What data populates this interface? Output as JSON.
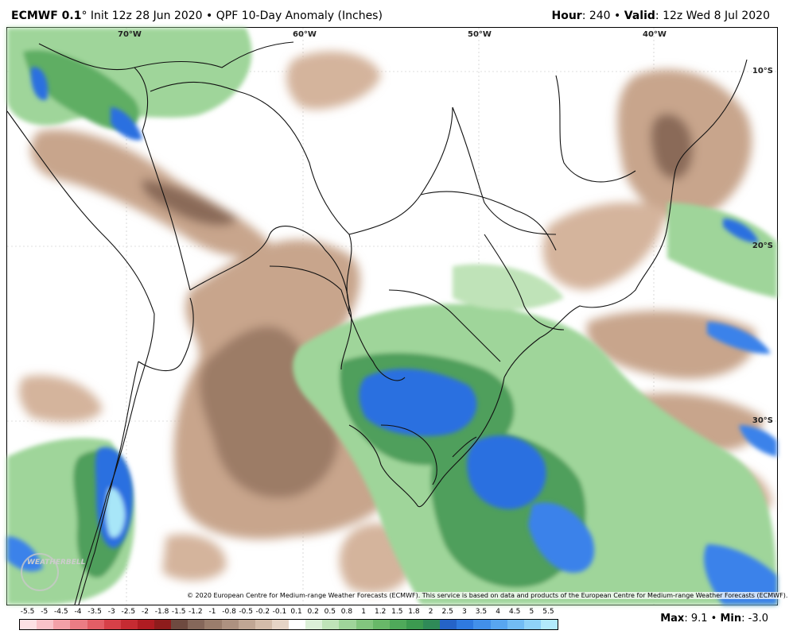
{
  "header": {
    "model": "ECMWF 0.1",
    "degree": "°",
    "init": "Init 12z 28 Jun 2020",
    "product": "QPF 10-Day Anomaly (Inches)",
    "hour_label": "Hour",
    "hour_value": ": 240",
    "valid_label": "Valid",
    "valid_value": ": 12z Wed 8 Jul 2020",
    "bullet": "•"
  },
  "map": {
    "lon_labels": [
      "70°W",
      "60°W",
      "50°W",
      "40°W"
    ],
    "lat_labels": [
      "10°S",
      "20°S",
      "30°S"
    ],
    "copyright": "© 2020 European Centre for Medium-range Weather Forecasts (ECMWF). This service is based on data and products of the European Centre for Medium-range Weather Forecasts (ECMWF).",
    "watermark": "WEATHERBELL",
    "colors": {
      "ocean_land_bg": "#ffffff",
      "dry_light": "#dcbfa6",
      "dry_mid": "#b8957a",
      "dry_dark": "#8a6a58",
      "wet_light": "#c6e6c0",
      "wet_mid": "#7cc27c",
      "wet_dark": "#3f9a52",
      "very_wet": "#2b6fe0",
      "extreme_wet": "#a8e6f8"
    }
  },
  "colorbar": {
    "labels": [
      "-5.5",
      "-5",
      "-4.5",
      "-4",
      "-3.5",
      "-3",
      "-2.5",
      "-2",
      "-1.8",
      "-1.5",
      "-1.2",
      "-1",
      "-0.8",
      "-0.5",
      "-0.2",
      "-0.1",
      "0.1",
      "0.2",
      "0.5",
      "0.8",
      "1",
      "1.2",
      "1.5",
      "1.8",
      "2",
      "2.5",
      "3",
      "3.5",
      "4",
      "4.5",
      "5",
      "5.5"
    ],
    "colors": [
      "#fde0e4",
      "#f9c2c9",
      "#f3a0a8",
      "#ec7c84",
      "#e35e66",
      "#d64048",
      "#c62b32",
      "#b01c22",
      "#8e1c1c",
      "#6e4a40",
      "#85675a",
      "#9a7d6c",
      "#ad9180",
      "#c0a694",
      "#d4bcaa",
      "#e6d4c6",
      "#ffffff",
      "#dcf0d8",
      "#bfe3b8",
      "#9fd59a",
      "#82c67e",
      "#68b868",
      "#4fa95a",
      "#3c9a50",
      "#2f8a58",
      "#2563c8",
      "#2f7ae0",
      "#4290ea",
      "#58a6f0",
      "#72bcf4",
      "#8fd2f8",
      "#b2eafc"
    ]
  },
  "stats": {
    "max_label": "Max",
    "max_value": ": 9.1",
    "min_label": "Min",
    "min_value": ": -3.0",
    "bullet": "•"
  }
}
